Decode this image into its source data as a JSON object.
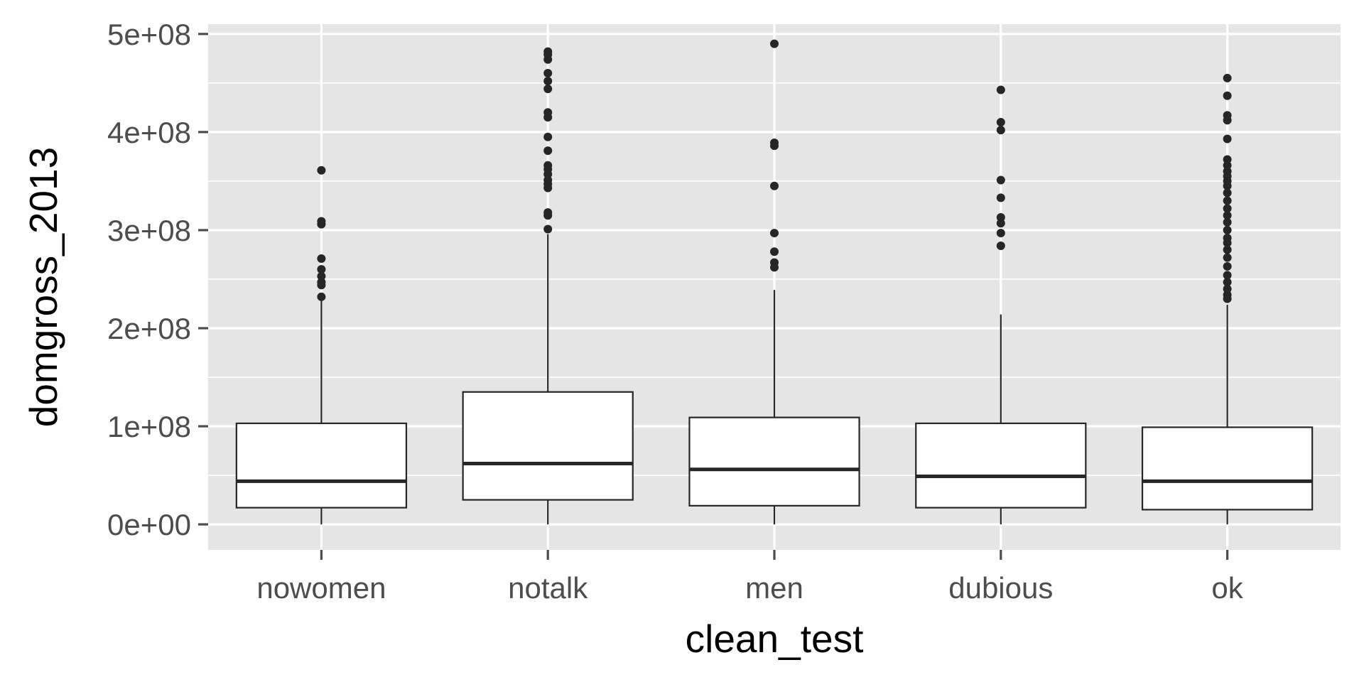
{
  "chart_data": {
    "type": "boxplot",
    "xlabel": "clean_test",
    "ylabel": "domgross_2013",
    "ylim": [
      -26000000.0,
      510000000.0
    ],
    "y_ticks": [
      0,
      100000000,
      200000000,
      300000000,
      400000000,
      500000000
    ],
    "y_tick_labels": [
      "0e+00",
      "1e+08",
      "2e+08",
      "3e+08",
      "4e+08",
      "5e+08"
    ],
    "grid": true,
    "legend": "none",
    "colors": {
      "panel_background": "#e5e5e5",
      "grid": "#ffffff",
      "box_fill": "#ffffff",
      "box_stroke": "#262626",
      "outlier": "#262626",
      "tick_label": "#4d4d4d",
      "axis_title": "#000000"
    },
    "categories": [
      "nowomen",
      "notalk",
      "men",
      "dubious",
      "ok"
    ],
    "boxes": [
      {
        "category": "nowomen",
        "lower_whisker": 0,
        "q1": 17000000,
        "median": 44000000,
        "q3": 103000000,
        "upper_whisker": 228000000,
        "outliers": [
          232000000,
          244000000,
          247000000,
          253000000,
          260000000,
          271000000,
          306000000,
          309000000,
          361000000
        ]
      },
      {
        "category": "notalk",
        "lower_whisker": 0,
        "q1": 25000000,
        "median": 62000000,
        "q3": 135000000,
        "upper_whisker": 296000000,
        "outliers": [
          301000000,
          315000000,
          318000000,
          343000000,
          347000000,
          351000000,
          357000000,
          362000000,
          366000000,
          381000000,
          395000000,
          415000000,
          420000000,
          444000000,
          452000000,
          460000000,
          474000000,
          479000000,
          482000000
        ]
      },
      {
        "category": "men",
        "lower_whisker": 0,
        "q1": 19000000,
        "median": 56000000,
        "q3": 109000000,
        "upper_whisker": 239000000,
        "outliers": [
          262000000,
          267000000,
          278000000,
          297000000,
          345000000,
          386000000,
          389000000,
          490000000
        ]
      },
      {
        "category": "dubious",
        "lower_whisker": 0,
        "q1": 17000000,
        "median": 49000000,
        "q3": 103000000,
        "upper_whisker": 214000000,
        "outliers": [
          284000000,
          297000000,
          307000000,
          313000000,
          333000000,
          351000000,
          402000000,
          410000000,
          443000000
        ]
      },
      {
        "category": "ok",
        "lower_whisker": 0,
        "q1": 15000000,
        "median": 44000000,
        "q3": 99000000,
        "upper_whisker": 224000000,
        "outliers": [
          230000000,
          234000000,
          240000000,
          247000000,
          254000000,
          263000000,
          272000000,
          280000000,
          287000000,
          292000000,
          300000000,
          308000000,
          315000000,
          322000000,
          330000000,
          338000000,
          345000000,
          350000000,
          355000000,
          360000000,
          366000000,
          372000000,
          393000000,
          412000000,
          417000000,
          437000000,
          455000000
        ]
      }
    ]
  }
}
